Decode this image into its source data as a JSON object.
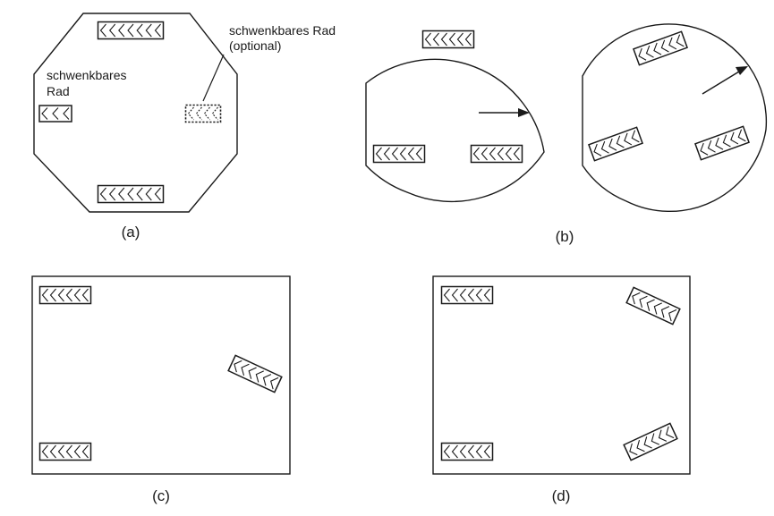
{
  "panels": [
    {
      "id": "a",
      "caption": "(a)",
      "shape": "octagon",
      "labels": {
        "left_wheel_line1": "schwenkbares",
        "left_wheel_line2": "Rad",
        "right_wheel_line1": "schwenkbares Rad",
        "right_wheel_line2": "(optional)"
      }
    },
    {
      "id": "b",
      "caption": "(b)",
      "shape": "two-circles",
      "motion_arrows": 2
    },
    {
      "id": "c",
      "caption": "(c)",
      "shape": "rectangle"
    },
    {
      "id": "d",
      "caption": "(d)",
      "shape": "rectangle"
    }
  ],
  "colors": {
    "stroke": "#1a1a1a",
    "background": "#ffffff"
  }
}
